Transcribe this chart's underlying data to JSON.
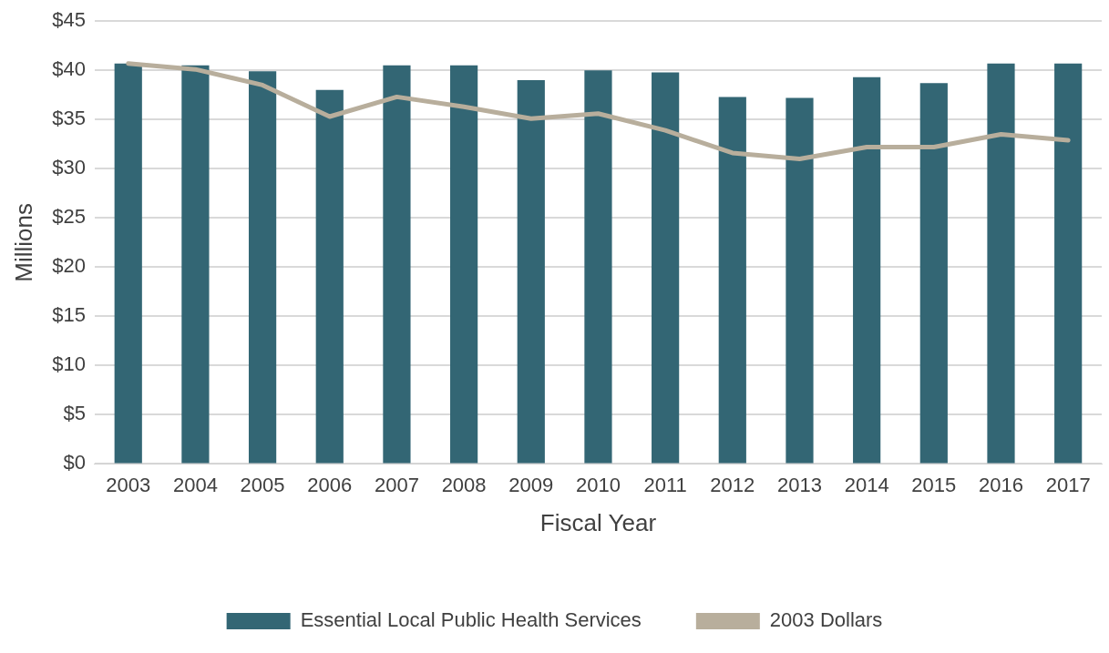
{
  "chart_data": {
    "type": "bar",
    "xlabel": "Fiscal Year",
    "ylabel": "Millions",
    "categories": [
      "2003",
      "2004",
      "2005",
      "2006",
      "2007",
      "2008",
      "2009",
      "2010",
      "2011",
      "2012",
      "2013",
      "2014",
      "2015",
      "2016",
      "2017"
    ],
    "series": [
      {
        "name": "Essential Local Public Health Services",
        "color": "#336674",
        "values": [
          40.7,
          40.5,
          39.9,
          38.0,
          40.5,
          40.5,
          39.0,
          40.0,
          39.8,
          37.3,
          37.2,
          39.3,
          38.7,
          40.7,
          40.7
        ]
      },
      {
        "name": "2003 Dollars",
        "type": "line",
        "color": "#b8ae9c",
        "values": [
          40.7,
          40.1,
          38.5,
          35.3,
          37.3,
          36.3,
          35.1,
          35.6,
          33.9,
          31.6,
          31.0,
          32.2,
          32.2,
          33.5,
          32.9
        ]
      }
    ],
    "ylim": [
      0,
      45
    ],
    "yticks": [
      {
        "value": 0,
        "label": "$0"
      },
      {
        "value": 5,
        "label": "$5"
      },
      {
        "value": 10,
        "label": "$10"
      },
      {
        "value": 15,
        "label": "$15"
      },
      {
        "value": 20,
        "label": "$20"
      },
      {
        "value": 25,
        "label": "$25"
      },
      {
        "value": 30,
        "label": "$30"
      },
      {
        "value": 35,
        "label": "$35"
      },
      {
        "value": 40,
        "label": "$40"
      },
      {
        "value": 45,
        "label": "$45"
      }
    ],
    "grid": "y",
    "legend": "bottom",
    "marker": "none",
    "line_style": "solid"
  }
}
